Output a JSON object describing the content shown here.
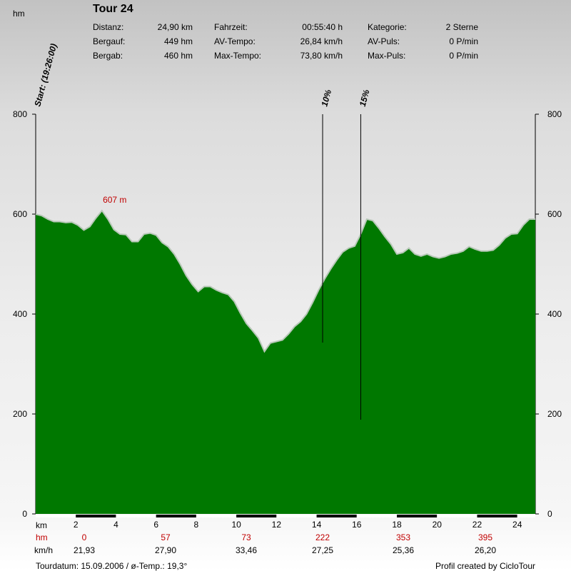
{
  "header": {
    "unit_label": "hm",
    "title": "Tour 24",
    "stats": [
      [
        {
          "label": "Distanz:",
          "value": "24,90 km"
        },
        {
          "label": "Fahrzeit:",
          "value": "00:55:40 h"
        },
        {
          "label": "Kategorie:",
          "value": "2 Sterne"
        }
      ],
      [
        {
          "label": "Bergauf:",
          "value": "449 hm"
        },
        {
          "label": "AV-Tempo:",
          "value": "26,84 km/h"
        },
        {
          "label": "AV-Puls:",
          "value": "0 P/min"
        }
      ],
      [
        {
          "label": "Bergab:",
          "value": "460 hm"
        },
        {
          "label": "Max-Tempo:",
          "value": "73,80 km/h"
        },
        {
          "label": "Max-Puls:",
          "value": "0 P/min"
        }
      ]
    ]
  },
  "footer": {
    "left": "Tourdatum: 15.09.2006  /  ø-Temp.: 19,3°",
    "right": "Profil created by CicloTour"
  },
  "colors": {
    "fill": "#007800",
    "outline": "#b8c8b8",
    "annotation": "#c00000",
    "axis": "#000000"
  },
  "chart_data": {
    "type": "area",
    "title": "Tour 24",
    "xlabel": "km",
    "ylabel": "hm",
    "xlim": [
      0,
      24.9
    ],
    "ylim": [
      0,
      800
    ],
    "y_ticks": [
      0,
      200,
      400,
      600,
      800
    ],
    "x_ticks": [
      2,
      4,
      6,
      8,
      10,
      12,
      14,
      16,
      18,
      20,
      22,
      24
    ],
    "grid": false,
    "x": [
      0,
      0.3,
      0.6,
      0.9,
      1.2,
      1.5,
      1.8,
      2.1,
      2.4,
      2.7,
      3.0,
      3.3,
      3.6,
      3.9,
      4.2,
      4.5,
      4.8,
      5.1,
      5.4,
      5.7,
      6.0,
      6.3,
      6.6,
      6.9,
      7.2,
      7.5,
      7.8,
      8.1,
      8.4,
      8.7,
      9.0,
      9.3,
      9.6,
      9.9,
      10.2,
      10.5,
      10.8,
      11.1,
      11.4,
      11.7,
      12.0,
      12.3,
      12.6,
      12.9,
      13.2,
      13.5,
      13.8,
      14.1,
      14.4,
      14.7,
      15.0,
      15.3,
      15.6,
      15.9,
      16.2,
      16.5,
      16.8,
      17.1,
      17.4,
      17.7,
      18.0,
      18.3,
      18.6,
      18.9,
      19.2,
      19.5,
      19.8,
      20.1,
      20.4,
      20.7,
      21.0,
      21.3,
      21.6,
      21.9,
      22.2,
      22.5,
      22.8,
      23.1,
      23.4,
      23.7,
      24.0,
      24.3,
      24.6,
      24.9
    ],
    "y": [
      600,
      597,
      590,
      585,
      585,
      583,
      584,
      578,
      568,
      575,
      592,
      607,
      590,
      569,
      560,
      559,
      545,
      545,
      560,
      562,
      558,
      543,
      535,
      520,
      500,
      477,
      459,
      445,
      455,
      455,
      448,
      443,
      439,
      425,
      402,
      381,
      367,
      352,
      325,
      342,
      345,
      348,
      360,
      375,
      385,
      400,
      423,
      448,
      470,
      490,
      508,
      524,
      532,
      536,
      560,
      590,
      587,
      572,
      555,
      540,
      520,
      523,
      532,
      520,
      516,
      520,
      515,
      512,
      515,
      520,
      522,
      526,
      535,
      530,
      526,
      526,
      528,
      538,
      552,
      560,
      561,
      578,
      590,
      590
    ],
    "annotations": [
      {
        "text": "607 m",
        "x": 3.3,
        "y": 607
      },
      {
        "text": "Start: (19:26:00)",
        "x": 0
      },
      {
        "text": "10%",
        "x": 14.3
      },
      {
        "text": "15%",
        "x": 16.2
      }
    ],
    "segment_rows": [
      {
        "label": "hm",
        "values": [
          "0",
          "57",
          "73",
          "222",
          "353",
          "395"
        ]
      },
      {
        "label": "km/h",
        "values": [
          "21,93",
          "27,90",
          "33,46",
          "27,25",
          "25,36",
          "26,20"
        ]
      }
    ]
  }
}
